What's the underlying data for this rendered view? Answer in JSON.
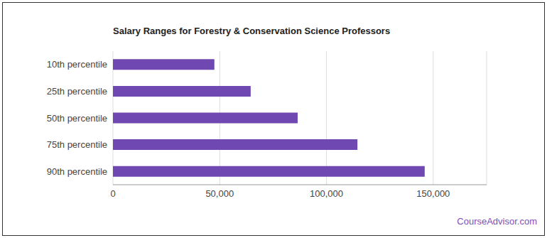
{
  "chart_data": {
    "type": "bar",
    "title": "Salary Ranges for Forestry & Conservation Science Professors",
    "source": "CourseAdvisor.com",
    "orientation": "horizontal",
    "categories": [
      "10th percentile",
      "25th percentile",
      "50th percentile",
      "75th percentile",
      "90th percentile"
    ],
    "values": [
      47500,
      64500,
      86500,
      114500,
      146000
    ],
    "color": "#7048b2",
    "xlim": [
      0,
      175000
    ],
    "xticks": [
      0,
      {
        "value": 50000,
        "label": "50,000"
      },
      {
        "value": 100000,
        "label": "100,000"
      },
      {
        "value": 150000,
        "label": "150,000"
      }
    ],
    "grid": true
  }
}
